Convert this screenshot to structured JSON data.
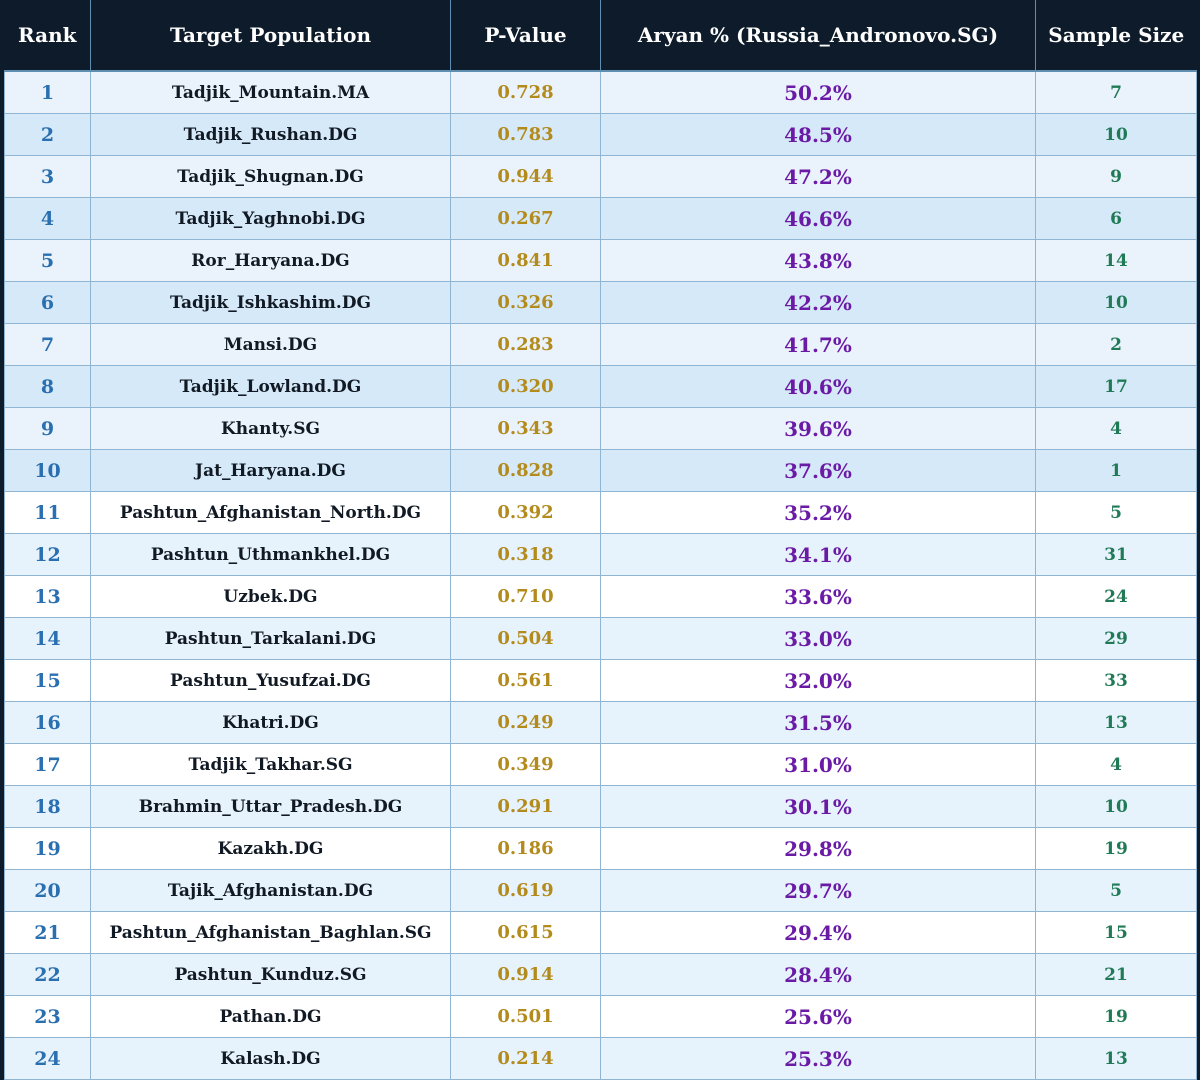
{
  "columns": {
    "rank": "Rank",
    "population": "Target Population",
    "pvalue": "P-Value",
    "aryan": "Aryan % (Russia_Andronovo.SG)",
    "sample": "Sample Size"
  },
  "rows": [
    {
      "rank": "1",
      "population": "Tadjik_Mountain.MA",
      "pvalue": "0.728",
      "aryan": "50.2%",
      "sample": "7"
    },
    {
      "rank": "2",
      "population": "Tadjik_Rushan.DG",
      "pvalue": "0.783",
      "aryan": "48.5%",
      "sample": "10"
    },
    {
      "rank": "3",
      "population": "Tadjik_Shugnan.DG",
      "pvalue": "0.944",
      "aryan": "47.2%",
      "sample": "9"
    },
    {
      "rank": "4",
      "population": "Tadjik_Yaghnobi.DG",
      "pvalue": "0.267",
      "aryan": "46.6%",
      "sample": "6"
    },
    {
      "rank": "5",
      "population": "Ror_Haryana.DG",
      "pvalue": "0.841",
      "aryan": "43.8%",
      "sample": "14"
    },
    {
      "rank": "6",
      "population": "Tadjik_Ishkashim.DG",
      "pvalue": "0.326",
      "aryan": "42.2%",
      "sample": "10"
    },
    {
      "rank": "7",
      "population": "Mansi.DG",
      "pvalue": "0.283",
      "aryan": "41.7%",
      "sample": "2"
    },
    {
      "rank": "8",
      "population": "Tadjik_Lowland.DG",
      "pvalue": "0.320",
      "aryan": "40.6%",
      "sample": "17"
    },
    {
      "rank": "9",
      "population": "Khanty.SG",
      "pvalue": "0.343",
      "aryan": "39.6%",
      "sample": "4"
    },
    {
      "rank": "10",
      "population": "Jat_Haryana.DG",
      "pvalue": "0.828",
      "aryan": "37.6%",
      "sample": "1"
    },
    {
      "rank": "11",
      "population": "Pashtun_Afghanistan_North.DG",
      "pvalue": "0.392",
      "aryan": "35.2%",
      "sample": "5"
    },
    {
      "rank": "12",
      "population": "Pashtun_Uthmankhel.DG",
      "pvalue": "0.318",
      "aryan": "34.1%",
      "sample": "31"
    },
    {
      "rank": "13",
      "population": "Uzbek.DG",
      "pvalue": "0.710",
      "aryan": "33.6%",
      "sample": "24"
    },
    {
      "rank": "14",
      "population": "Pashtun_Tarkalani.DG",
      "pvalue": "0.504",
      "aryan": "33.0%",
      "sample": "29"
    },
    {
      "rank": "15",
      "population": "Pashtun_Yusufzai.DG",
      "pvalue": "0.561",
      "aryan": "32.0%",
      "sample": "33"
    },
    {
      "rank": "16",
      "population": "Khatri.DG",
      "pvalue": "0.249",
      "aryan": "31.5%",
      "sample": "13"
    },
    {
      "rank": "17",
      "population": "Tadjik_Takhar.SG",
      "pvalue": "0.349",
      "aryan": "31.0%",
      "sample": "4"
    },
    {
      "rank": "18",
      "population": "Brahmin_Uttar_Pradesh.DG",
      "pvalue": "0.291",
      "aryan": "30.1%",
      "sample": "10"
    },
    {
      "rank": "19",
      "population": "Kazakh.DG",
      "pvalue": "0.186",
      "aryan": "29.8%",
      "sample": "19"
    },
    {
      "rank": "20",
      "population": "Tajik_Afghanistan.DG",
      "pvalue": "0.619",
      "aryan": "29.7%",
      "sample": "5"
    },
    {
      "rank": "21",
      "population": "Pashtun_Afghanistan_Baghlan.SG",
      "pvalue": "0.615",
      "aryan": "29.4%",
      "sample": "15"
    },
    {
      "rank": "22",
      "population": "Pashtun_Kunduz.SG",
      "pvalue": "0.914",
      "aryan": "28.4%",
      "sample": "21"
    },
    {
      "rank": "23",
      "population": "Pathan.DG",
      "pvalue": "0.501",
      "aryan": "25.6%",
      "sample": "19"
    },
    {
      "rank": "24",
      "population": "Kalash.DG",
      "pvalue": "0.214",
      "aryan": "25.3%",
      "sample": "13"
    }
  ],
  "colors": {
    "header_bg": "#0d1b2a",
    "rank": "#2a6fb0",
    "pvalue": "#b38b1d",
    "aryan": "#6a1aa5",
    "sample": "#1f7a55"
  }
}
